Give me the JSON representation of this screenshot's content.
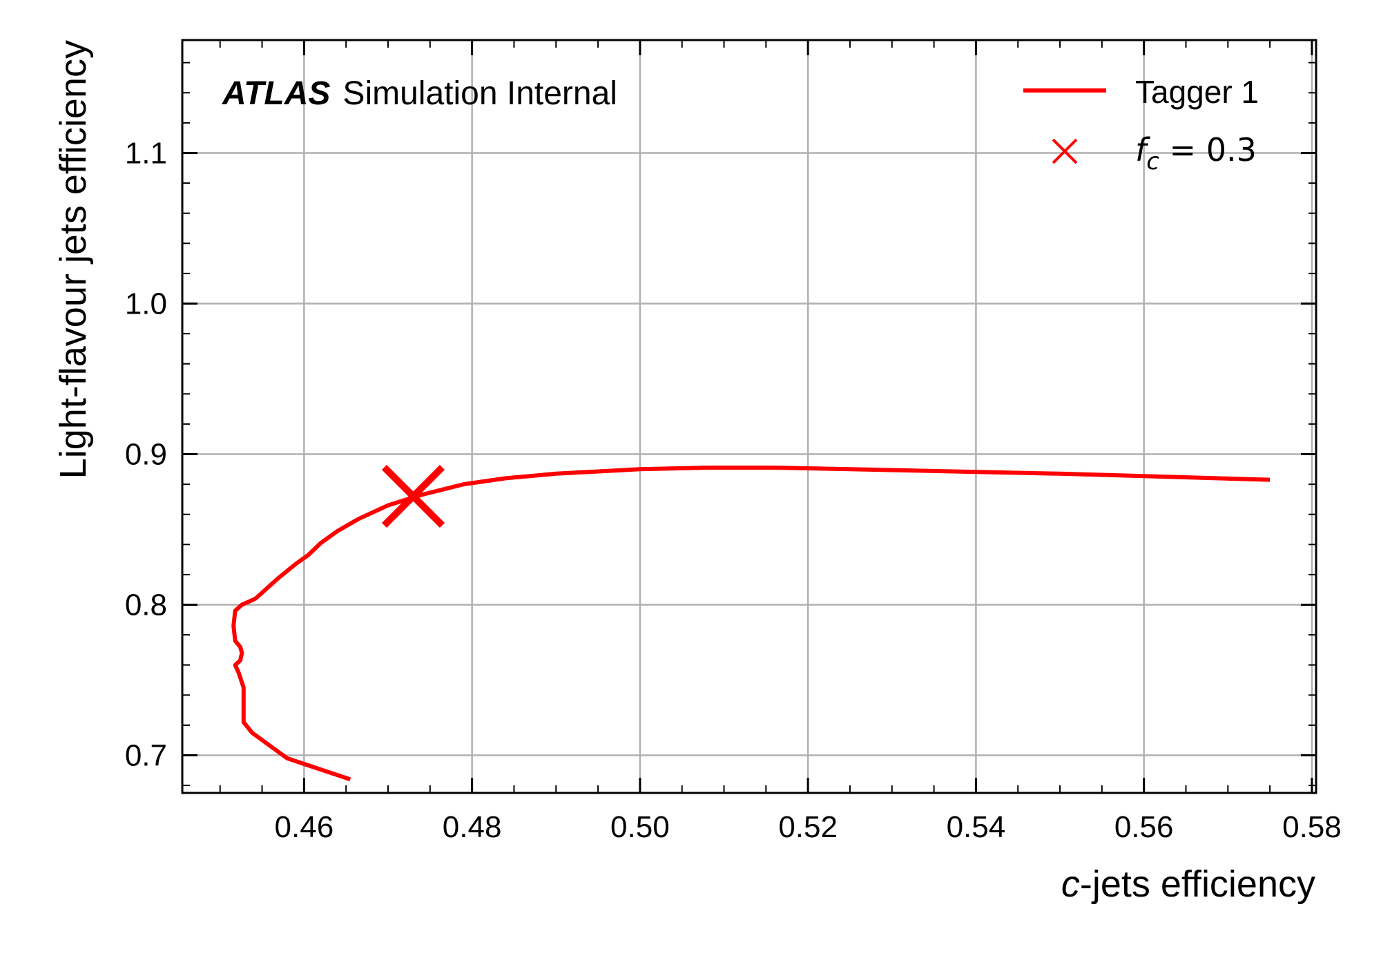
{
  "chart_data": {
    "type": "line",
    "title": "",
    "annotation": {
      "experiment": "ATLAS",
      "label": "Simulation Internal"
    },
    "xlabel": {
      "italic_part": "c",
      "rest": "-jets efficiency"
    },
    "ylabel": "Light-flavour jets efficiency",
    "xlim": [
      0.4455,
      0.5805
    ],
    "ylim": [
      0.675,
      1.175
    ],
    "xticks": [
      0.46,
      0.48,
      0.5,
      0.52,
      0.54,
      0.56,
      0.58
    ],
    "xtick_labels": [
      "0.46",
      "0.48",
      "0.50",
      "0.52",
      "0.54",
      "0.56",
      "0.58"
    ],
    "yticks": [
      0.7,
      0.8,
      0.9,
      1.0,
      1.1
    ],
    "ytick_labels": [
      "0.7",
      "0.8",
      "0.9",
      "1.0",
      "1.1"
    ],
    "grid": true,
    "legend_position": "top-right",
    "series": [
      {
        "name": "Tagger 1",
        "color": "#ff0000",
        "points": [
          [
            0.4655,
            0.684
          ],
          [
            0.458,
            0.698
          ],
          [
            0.4538,
            0.715
          ],
          [
            0.4528,
            0.722
          ],
          [
            0.4528,
            0.745
          ],
          [
            0.4522,
            0.755
          ],
          [
            0.4518,
            0.76
          ],
          [
            0.4524,
            0.763
          ],
          [
            0.4526,
            0.768
          ],
          [
            0.4524,
            0.772
          ],
          [
            0.4518,
            0.776
          ],
          [
            0.4516,
            0.786
          ],
          [
            0.4518,
            0.796
          ],
          [
            0.4526,
            0.8
          ],
          [
            0.4542,
            0.804
          ],
          [
            0.4554,
            0.81
          ],
          [
            0.457,
            0.818
          ],
          [
            0.459,
            0.827
          ],
          [
            0.4605,
            0.833
          ],
          [
            0.462,
            0.841
          ],
          [
            0.464,
            0.849
          ],
          [
            0.4665,
            0.857
          ],
          [
            0.47,
            0.866
          ],
          [
            0.474,
            0.873
          ],
          [
            0.479,
            0.88
          ],
          [
            0.484,
            0.884
          ],
          [
            0.49,
            0.887
          ],
          [
            0.5,
            0.89
          ],
          [
            0.508,
            0.891
          ],
          [
            0.516,
            0.891
          ],
          [
            0.525,
            0.89
          ],
          [
            0.55,
            0.887
          ],
          [
            0.575,
            0.883
          ]
        ]
      }
    ],
    "markers": [
      {
        "name": "f_c = 0.3",
        "legend_math": {
          "symbol": "f",
          "subscript": "c",
          "rest": " = 0.3"
        },
        "marker": "x",
        "color": "#ff0000",
        "x": 0.473,
        "y": 0.872
      }
    ],
    "legend": [
      {
        "label": "Tagger 1",
        "kind": "line"
      },
      {
        "label": "f_c = 0.3",
        "kind": "marker"
      }
    ]
  }
}
